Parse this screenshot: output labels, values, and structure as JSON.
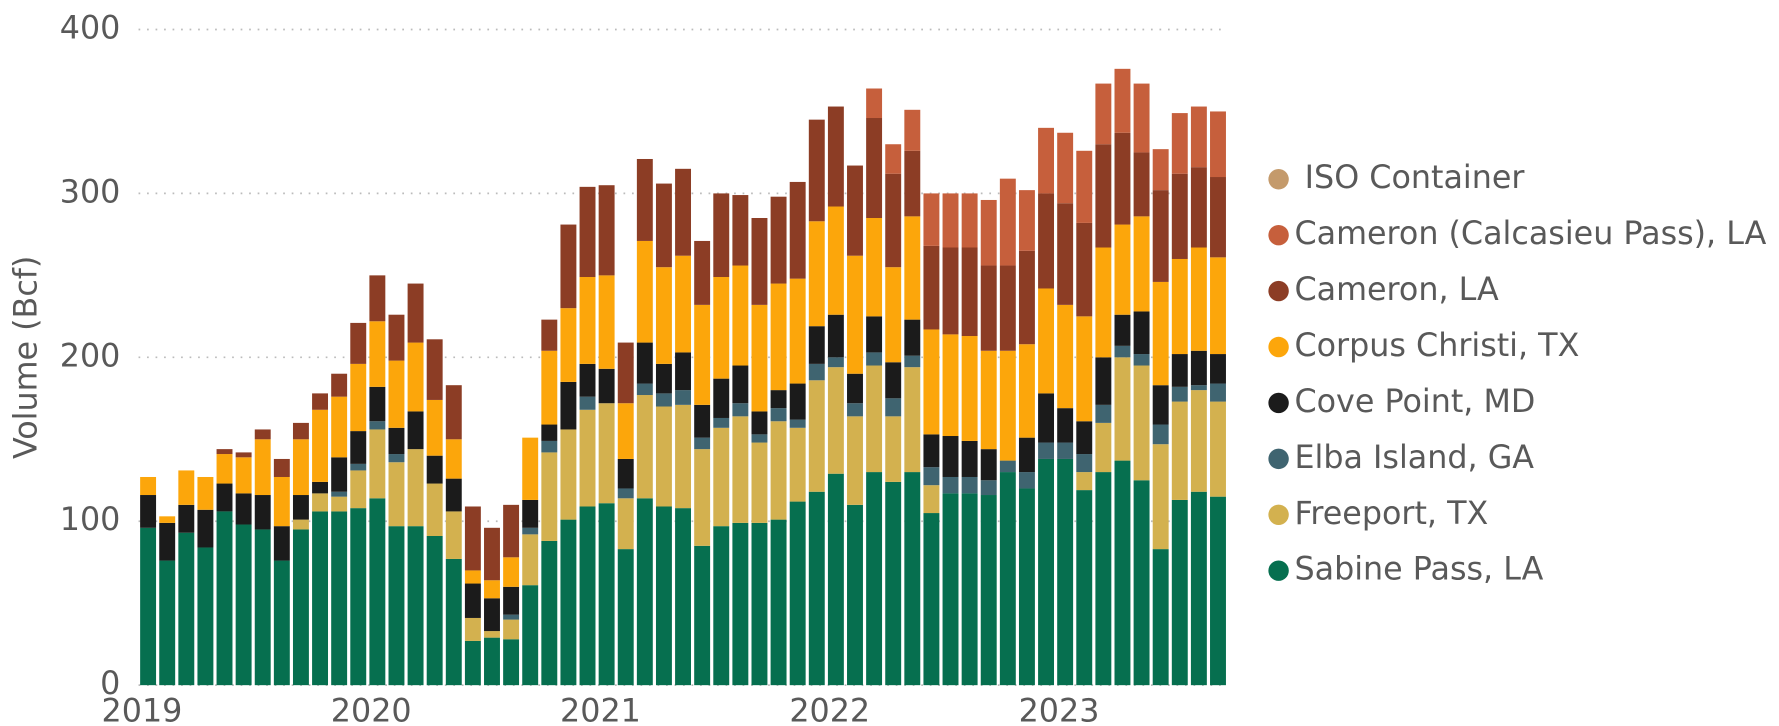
{
  "chart_data": {
    "type": "stacked-bar",
    "y_label": "Volume (Bcf)",
    "categories": [
      "2019",
      null,
      null,
      null,
      null,
      null,
      null,
      null,
      null,
      null,
      null,
      null,
      "2020",
      null,
      null,
      null,
      null,
      null,
      null,
      null,
      null,
      null,
      null,
      null,
      "2021",
      null,
      null,
      null,
      null,
      null,
      null,
      null,
      null,
      null,
      null,
      null,
      "2022",
      null,
      null,
      null,
      null,
      null,
      null,
      null,
      null,
      null,
      null,
      null,
      "2023",
      null,
      null,
      null,
      null,
      null,
      null,
      null,
      null
    ],
    "ylim": [
      0,
      400
    ],
    "yticks": [
      0,
      100,
      200,
      300,
      400
    ],
    "grid": true,
    "legend": "right",
    "series": [
      {
        "name": "Sabine Pass, LA",
        "color": "#066f4f",
        "values": [
          96,
          76,
          93,
          84,
          106,
          98,
          95,
          76,
          95,
          106,
          106,
          108,
          114,
          97,
          97,
          91,
          77,
          27,
          29,
          28,
          61,
          88,
          101,
          109,
          111,
          83,
          114,
          109,
          108,
          85,
          97,
          99,
          99,
          101,
          112,
          118,
          129,
          110,
          130,
          124,
          130,
          105,
          117,
          117,
          116,
          130,
          120,
          138,
          138,
          119,
          130,
          137,
          125,
          83,
          113,
          118,
          115
        ]
      },
      {
        "name": "Freeport, TX",
        "color": "#d3b14f",
        "values": [
          0,
          0,
          0,
          0,
          0,
          0,
          0,
          0,
          6,
          11,
          9,
          23,
          42,
          39,
          47,
          32,
          29,
          14,
          4,
          12,
          31,
          54,
          55,
          59,
          61,
          31,
          63,
          61,
          63,
          59,
          60,
          65,
          49,
          60,
          45,
          68,
          65,
          54,
          65,
          40,
          64,
          17,
          0,
          0,
          0,
          0,
          0,
          0,
          0,
          11,
          30,
          63,
          70,
          64,
          60,
          62,
          58
        ]
      },
      {
        "name": "Elba Island, GA",
        "color": "#3f6470",
        "values": [
          0,
          0,
          0,
          0,
          0,
          0,
          0,
          0,
          0,
          0,
          3,
          4,
          5,
          5,
          0,
          0,
          0,
          0,
          0,
          3,
          4,
          7,
          0,
          8,
          0,
          6,
          7,
          8,
          9,
          7,
          6,
          8,
          5,
          8,
          5,
          10,
          6,
          8,
          8,
          11,
          7,
          11,
          10,
          10,
          9,
          7,
          10,
          10,
          10,
          11,
          11,
          7,
          7,
          12,
          9,
          3,
          11
        ]
      },
      {
        "name": "Cove Point, MD",
        "color": "#1b1b1b",
        "values": [
          20,
          23,
          17,
          23,
          17,
          19,
          21,
          21,
          15,
          7,
          21,
          20,
          21,
          16,
          23,
          17,
          20,
          21,
          20,
          17,
          17,
          10,
          29,
          20,
          21,
          18,
          25,
          18,
          23,
          20,
          24,
          23,
          14,
          11,
          22,
          23,
          26,
          18,
          22,
          22,
          22,
          20,
          25,
          22,
          19,
          0,
          21,
          30,
          21,
          20,
          29,
          19,
          26,
          24,
          20,
          21,
          18
        ]
      },
      {
        "name": "Corpus Christi, TX",
        "color": "#fca60b",
        "values": [
          11,
          4,
          21,
          20,
          18,
          22,
          34,
          30,
          34,
          44,
          37,
          41,
          40,
          41,
          42,
          34,
          24,
          8,
          11,
          18,
          38,
          45,
          45,
          53,
          57,
          34,
          62,
          59,
          59,
          61,
          62,
          61,
          65,
          65,
          64,
          64,
          66,
          72,
          60,
          58,
          63,
          64,
          62,
          64,
          60,
          67,
          57,
          64,
          63,
          64,
          67,
          55,
          58,
          63,
          58,
          63,
          59
        ]
      },
      {
        "name": "Cameron, LA",
        "color": "#8c3d25",
        "values": [
          0,
          0,
          0,
          0,
          3,
          3,
          6,
          11,
          10,
          10,
          14,
          25,
          28,
          28,
          36,
          37,
          33,
          39,
          32,
          32,
          0,
          19,
          51,
          55,
          55,
          37,
          50,
          51,
          53,
          39,
          51,
          43,
          53,
          53,
          59,
          62,
          61,
          55,
          61,
          57,
          40,
          51,
          53,
          54,
          52,
          52,
          57,
          58,
          62,
          57,
          63,
          56,
          39,
          56,
          52,
          49,
          49
        ]
      },
      {
        "name": "Cameron (Calcasieu Pass), LA",
        "color": "#c65f3c",
        "values": [
          0,
          0,
          0,
          0,
          0,
          0,
          0,
          0,
          0,
          0,
          0,
          0,
          0,
          0,
          0,
          0,
          0,
          0,
          0,
          0,
          0,
          0,
          0,
          0,
          0,
          0,
          0,
          0,
          0,
          0,
          0,
          0,
          0,
          0,
          0,
          0,
          0,
          0,
          18,
          18,
          25,
          32,
          33,
          33,
          40,
          53,
          37,
          40,
          43,
          44,
          37,
          39,
          42,
          25,
          37,
          37,
          40
        ]
      },
      {
        "name": "ISO Container",
        "color": "#c49a6b",
        "values": [
          0,
          0,
          0,
          0,
          0,
          0,
          0,
          0,
          0,
          0,
          0,
          0,
          0,
          0,
          0,
          0,
          0,
          0,
          0,
          0,
          0,
          0,
          0,
          0,
          0,
          0,
          0,
          0,
          0,
          0,
          0,
          0,
          0,
          0,
          0,
          0,
          0,
          0,
          0,
          0,
          0,
          0,
          0,
          0,
          0,
          0,
          0,
          0,
          0,
          0,
          0,
          0,
          0,
          0,
          0,
          0,
          0
        ]
      }
    ]
  }
}
